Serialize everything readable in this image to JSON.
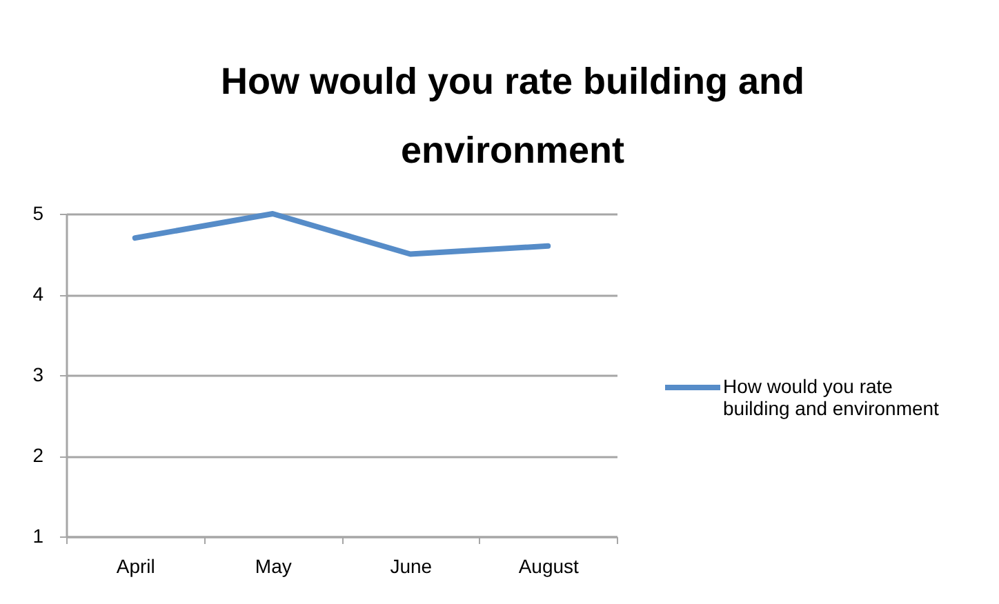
{
  "chart_data": {
    "type": "line",
    "title": "How would you rate building and environment",
    "categories": [
      "April",
      "May",
      "June",
      "August"
    ],
    "series": [
      {
        "name": "How would you rate building and environment",
        "color": "#568cc8",
        "values": [
          4.7,
          5.0,
          4.5,
          4.6
        ]
      }
    ],
    "ylim": [
      1,
      5
    ],
    "yticks": [
      1,
      2,
      3,
      4,
      5
    ],
    "grid": "y",
    "legend": "right",
    "marker": "none",
    "line_style": "solid"
  }
}
